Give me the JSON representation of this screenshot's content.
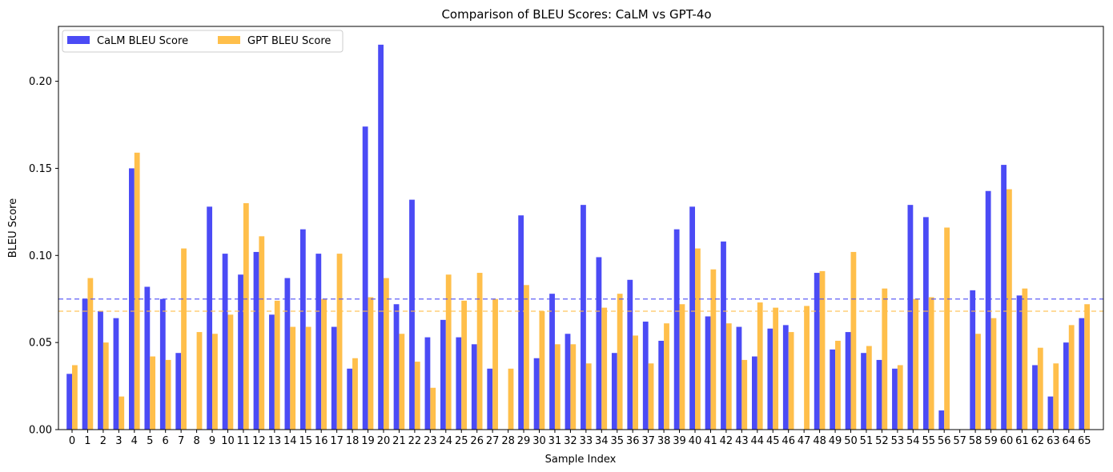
{
  "chart_data": {
    "type": "bar",
    "title": "Comparison of BLEU Scores: CaLM vs GPT-4o",
    "xlabel": "Sample Index",
    "ylabel": "BLEU Score",
    "ylim": [
      0,
      0.2315
    ],
    "yticks": [
      0.0,
      0.05,
      0.1,
      0.15,
      0.2
    ],
    "ytick_labels": [
      "0.00",
      "0.05",
      "0.10",
      "0.15",
      "0.20"
    ],
    "grid": false,
    "legend_position": "top-left",
    "categories": [
      "0",
      "1",
      "2",
      "3",
      "4",
      "5",
      "6",
      "7",
      "8",
      "9",
      "10",
      "11",
      "12",
      "13",
      "14",
      "15",
      "16",
      "17",
      "18",
      "19",
      "20",
      "21",
      "22",
      "23",
      "24",
      "25",
      "26",
      "27",
      "28",
      "29",
      "30",
      "31",
      "32",
      "33",
      "34",
      "35",
      "36",
      "37",
      "38",
      "39",
      "40",
      "41",
      "42",
      "43",
      "44",
      "45",
      "46",
      "47",
      "48",
      "49",
      "50",
      "51",
      "52",
      "53",
      "54",
      "55",
      "56",
      "57",
      "58",
      "59",
      "60",
      "61",
      "62",
      "63",
      "64",
      "65"
    ],
    "series": [
      {
        "name": "CaLM BLEU Score",
        "color": "#4b4bf5",
        "mean": 0.075,
        "values": [
          0.032,
          0.075,
          0.068,
          0.064,
          0.15,
          0.082,
          0.075,
          0.044,
          0.0,
          0.128,
          0.101,
          0.089,
          0.102,
          0.066,
          0.087,
          0.115,
          0.101,
          0.059,
          0.035,
          0.174,
          0.221,
          0.072,
          0.132,
          0.053,
          0.063,
          0.053,
          0.049,
          0.035,
          0.0,
          0.123,
          0.041,
          0.078,
          0.055,
          0.129,
          0.099,
          0.044,
          0.086,
          0.062,
          0.051,
          0.115,
          0.128,
          0.065,
          0.108,
          0.059,
          0.042,
          0.058,
          0.06,
          0.0,
          0.09,
          0.046,
          0.056,
          0.044,
          0.04,
          0.035,
          0.129,
          0.122,
          0.011,
          0.0,
          0.08,
          0.137,
          0.152,
          0.077,
          0.037,
          0.019,
          0.05,
          0.064
        ]
      },
      {
        "name": "GPT BLEU Score",
        "color": "#ffbf4b",
        "mean": 0.068,
        "values": [
          0.037,
          0.087,
          0.05,
          0.019,
          0.159,
          0.042,
          0.04,
          0.104,
          0.056,
          0.055,
          0.066,
          0.13,
          0.111,
          0.074,
          0.059,
          0.059,
          0.075,
          0.101,
          0.041,
          0.076,
          0.087,
          0.055,
          0.039,
          0.024,
          0.089,
          0.074,
          0.09,
          0.075,
          0.035,
          0.083,
          0.068,
          0.049,
          0.049,
          0.038,
          0.07,
          0.078,
          0.054,
          0.038,
          0.061,
          0.072,
          0.104,
          0.092,
          0.061,
          0.04,
          0.073,
          0.07,
          0.056,
          0.071,
          0.091,
          0.051,
          0.102,
          0.048,
          0.081,
          0.037,
          0.075,
          0.076,
          0.116,
          0.0,
          0.055,
          0.064,
          0.138,
          0.081,
          0.047,
          0.038,
          0.06,
          0.072
        ]
      }
    ]
  }
}
